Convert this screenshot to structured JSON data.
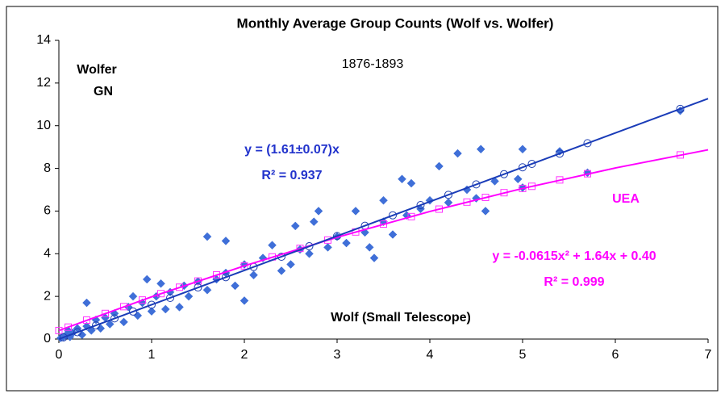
{
  "chart_data": {
    "type": "scatter",
    "title": "Monthly Average Group Counts (Wolf vs. Wolfer)",
    "annotations": {
      "y_label_1": "Wolfer",
      "y_label_2": "GN",
      "period": "1876-1893",
      "blue_fit": "y = (1.61±0.07)x",
      "blue_r2": "R² = 0.937",
      "uea": "UEA",
      "magenta_fit": "y = -0.0615x² + 1.64x + 0.40",
      "magenta_r2": "R² = 0.999",
      "x_label": "Wolf (Small Telescope)"
    },
    "xlim": [
      0,
      7
    ],
    "xticks": [
      0,
      1,
      2,
      3,
      4,
      5,
      6,
      7
    ],
    "ylim": [
      0,
      14
    ],
    "yticks": [
      0,
      2,
      4,
      6,
      8,
      10,
      12,
      14
    ],
    "grid": false,
    "series": [
      {
        "style": "diamond",
        "color": "#3f6fd8",
        "x": [
          0.02,
          0.05,
          0.08,
          0.1,
          0.12,
          0.15,
          0.2,
          0.25,
          0.3,
          0.3,
          0.35,
          0.4,
          0.45,
          0.5,
          0.55,
          0.6,
          0.7,
          0.75,
          0.8,
          0.85,
          0.9,
          0.95,
          1.0,
          1.05,
          1.1,
          1.15,
          1.2,
          1.3,
          1.35,
          1.4,
          1.5,
          1.6,
          1.6,
          1.7,
          1.8,
          1.8,
          1.9,
          2.0,
          2.0,
          2.1,
          2.2,
          2.3,
          2.4,
          2.5,
          2.55,
          2.6,
          2.7,
          2.75,
          2.8,
          2.9,
          3.0,
          3.1,
          3.2,
          3.3,
          3.35,
          3.4,
          3.5,
          3.5,
          3.6,
          3.7,
          3.75,
          3.8,
          3.9,
          4.0,
          4.1,
          4.2,
          4.3,
          4.4,
          4.5,
          4.55,
          4.6,
          4.7,
          4.95,
          5.0,
          5.0,
          5.4,
          5.7,
          6.7
        ],
        "values": [
          0.05,
          0.1,
          0.2,
          0.4,
          0.1,
          0.3,
          0.5,
          0.2,
          1.7,
          0.6,
          0.4,
          0.9,
          0.5,
          1.0,
          0.7,
          1.2,
          0.8,
          1.5,
          2.0,
          1.1,
          1.7,
          2.8,
          1.3,
          2.0,
          2.6,
          1.4,
          2.2,
          1.5,
          2.5,
          2.0,
          2.7,
          4.8,
          2.3,
          2.8,
          4.6,
          3.1,
          2.5,
          1.8,
          3.5,
          3.0,
          3.8,
          4.4,
          3.2,
          3.5,
          5.3,
          4.2,
          4.0,
          5.5,
          6.0,
          4.3,
          4.8,
          4.5,
          6.0,
          5.0,
          4.3,
          3.8,
          6.5,
          5.5,
          4.9,
          7.5,
          5.8,
          7.3,
          6.1,
          6.5,
          8.1,
          6.4,
          8.7,
          7.0,
          6.6,
          8.9,
          6.0,
          7.4,
          7.5,
          8.9,
          7.1,
          8.8,
          7.8,
          10.7
        ]
      },
      {
        "style": "square",
        "color": "#ff33ff",
        "x": [
          0,
          0.1,
          0.3,
          0.5,
          0.7,
          0.9,
          1.1,
          1.3,
          1.5,
          1.7,
          2.0,
          2.3,
          2.6,
          2.9,
          3.2,
          3.5,
          3.8,
          4.1,
          4.4,
          4.6,
          4.8,
          5.0,
          5.1,
          5.4,
          5.7,
          6.7
        ],
        "values": [
          0.4,
          0.56,
          0.89,
          1.2,
          1.52,
          1.83,
          2.13,
          2.43,
          2.72,
          3.01,
          3.43,
          3.85,
          4.25,
          4.64,
          5.02,
          5.39,
          5.74,
          6.09,
          6.42,
          6.64,
          6.86,
          7.06,
          7.16,
          7.46,
          7.75,
          8.63
        ]
      },
      {
        "style": "circle",
        "color": "#1f3fb0",
        "x": [
          0.05,
          0.2,
          0.4,
          0.6,
          0.8,
          1.0,
          1.2,
          1.5,
          1.8,
          2.1,
          2.4,
          2.7,
          3.0,
          3.3,
          3.6,
          3.9,
          4.2,
          4.5,
          4.8,
          5.0,
          5.1,
          5.4,
          5.7,
          6.7
        ],
        "values": [
          0.08,
          0.32,
          0.64,
          0.97,
          1.29,
          1.61,
          1.93,
          2.42,
          2.9,
          3.38,
          3.86,
          4.35,
          4.83,
          5.31,
          5.8,
          6.28,
          6.76,
          7.25,
          7.73,
          8.05,
          8.21,
          8.69,
          9.18,
          10.79
        ]
      },
      {
        "style": "line",
        "color": "#ff00ff",
        "x": [
          0,
          1,
          2,
          3,
          4,
          5,
          6,
          7
        ],
        "values": [
          0.4,
          1.98,
          3.43,
          4.77,
          5.98,
          7.06,
          8.02,
          8.87
        ]
      },
      {
        "style": "line",
        "color": "#1a3cb8",
        "x": [
          0,
          7
        ],
        "values": [
          0,
          11.27
        ]
      }
    ]
  }
}
